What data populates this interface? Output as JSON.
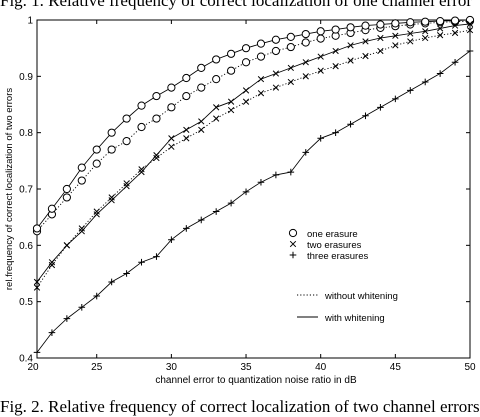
{
  "captions": {
    "top": "Fig. 1.  Relative frequency of correct localization of one channel error",
    "bottom": "Fig. 2.  Relative frequency of correct localization of two channel errors"
  },
  "chart_data": {
    "type": "line",
    "xlabel": "channel error to quantization noise ratio in dB",
    "ylabel": "rel.frequency of correct localization of two errors",
    "xlim": [
      21,
      50
    ],
    "ylim": [
      0.4,
      1.0
    ],
    "xticks": [
      20,
      25,
      30,
      35,
      40,
      45,
      50
    ],
    "yticks": [
      0.4,
      0.5,
      0.6,
      0.7,
      0.8,
      0.9,
      1.0
    ],
    "xtick_labels": [
      "20",
      "25",
      "30",
      "35",
      "40",
      "45",
      "50"
    ],
    "ytick_labels": [
      "0.4",
      "0.5",
      "0.6",
      "0.7",
      "0.8",
      "0.9",
      "1"
    ],
    "grid": false,
    "legend": {
      "position": "right-middle",
      "markers": [
        {
          "symbol": "circle",
          "label": "one erasure"
        },
        {
          "symbol": "x",
          "label": "two erasures"
        },
        {
          "symbol": "plus",
          "label": "three erasures"
        }
      ],
      "lines": [
        {
          "style": "dotted",
          "label": "without whitening"
        },
        {
          "style": "solid",
          "label": "with whitening"
        }
      ]
    },
    "series": [
      {
        "group": "one erasure",
        "marker": "circle",
        "whitening": false,
        "line": "dotted",
        "x": [
          21,
          22,
          23,
          24,
          25,
          26,
          27,
          28,
          29,
          30,
          31,
          32,
          33,
          34,
          35,
          36,
          37,
          38,
          39,
          40,
          41,
          42,
          43,
          44,
          45,
          46,
          47,
          48,
          49,
          50
        ],
        "y": [
          0.625,
          0.655,
          0.685,
          0.715,
          0.745,
          0.77,
          0.785,
          0.81,
          0.825,
          0.845,
          0.865,
          0.88,
          0.895,
          0.91,
          0.925,
          0.935,
          0.945,
          0.952,
          0.96,
          0.967,
          0.972,
          0.977,
          0.982,
          0.986,
          0.989,
          0.992,
          0.994,
          0.996,
          0.997,
          0.998
        ]
      },
      {
        "group": "one erasure",
        "marker": "circle",
        "whitening": true,
        "line": "solid",
        "x": [
          21,
          22,
          23,
          24,
          25,
          26,
          27,
          28,
          29,
          30,
          31,
          32,
          33,
          34,
          35,
          36,
          37,
          38,
          39,
          40,
          41,
          42,
          43,
          44,
          45,
          46,
          47,
          48,
          49,
          50
        ],
        "y": [
          0.63,
          0.665,
          0.7,
          0.738,
          0.77,
          0.8,
          0.825,
          0.848,
          0.865,
          0.88,
          0.897,
          0.915,
          0.93,
          0.94,
          0.95,
          0.958,
          0.965,
          0.97,
          0.975,
          0.98,
          0.983,
          0.987,
          0.99,
          0.992,
          0.994,
          0.996,
          0.997,
          0.998,
          0.999,
          1.0
        ]
      },
      {
        "group": "two erasures",
        "marker": "x",
        "whitening": false,
        "line": "dotted",
        "x": [
          21,
          22,
          23,
          24,
          25,
          26,
          27,
          28,
          29,
          30,
          31,
          32,
          33,
          34,
          35,
          36,
          37,
          38,
          39,
          40,
          41,
          42,
          43,
          44,
          45,
          46,
          47,
          48,
          49,
          50
        ],
        "y": [
          0.525,
          0.565,
          0.6,
          0.63,
          0.66,
          0.685,
          0.71,
          0.735,
          0.755,
          0.775,
          0.79,
          0.805,
          0.825,
          0.84,
          0.855,
          0.87,
          0.88,
          0.89,
          0.9,
          0.91,
          0.918,
          0.928,
          0.936,
          0.945,
          0.955,
          0.962,
          0.968,
          0.973,
          0.977,
          0.982
        ]
      },
      {
        "group": "two erasures",
        "marker": "x",
        "whitening": true,
        "line": "solid",
        "x": [
          21,
          22,
          23,
          24,
          25,
          26,
          27,
          28,
          29,
          30,
          31,
          32,
          33,
          34,
          35,
          36,
          37,
          38,
          39,
          40,
          41,
          42,
          43,
          44,
          45,
          46,
          47,
          48,
          49,
          50
        ],
        "y": [
          0.535,
          0.57,
          0.6,
          0.625,
          0.655,
          0.68,
          0.705,
          0.73,
          0.76,
          0.79,
          0.805,
          0.82,
          0.845,
          0.855,
          0.875,
          0.895,
          0.905,
          0.915,
          0.925,
          0.935,
          0.945,
          0.955,
          0.962,
          0.968,
          0.972,
          0.976,
          0.98,
          0.985,
          0.99,
          0.993
        ]
      },
      {
        "group": "three erasures",
        "marker": "plus",
        "whitening": true,
        "line": "solid",
        "x": [
          21,
          22,
          23,
          24,
          25,
          26,
          27,
          28,
          29,
          30,
          31,
          32,
          33,
          34,
          35,
          36,
          37,
          38,
          39,
          40,
          41,
          42,
          43,
          44,
          45,
          46,
          47,
          48,
          49,
          50
        ],
        "y": [
          0.41,
          0.445,
          0.47,
          0.49,
          0.51,
          0.535,
          0.55,
          0.57,
          0.58,
          0.61,
          0.63,
          0.645,
          0.66,
          0.675,
          0.695,
          0.712,
          0.725,
          0.73,
          0.765,
          0.79,
          0.8,
          0.815,
          0.83,
          0.845,
          0.86,
          0.875,
          0.89,
          0.905,
          0.925,
          0.945
        ]
      }
    ]
  }
}
